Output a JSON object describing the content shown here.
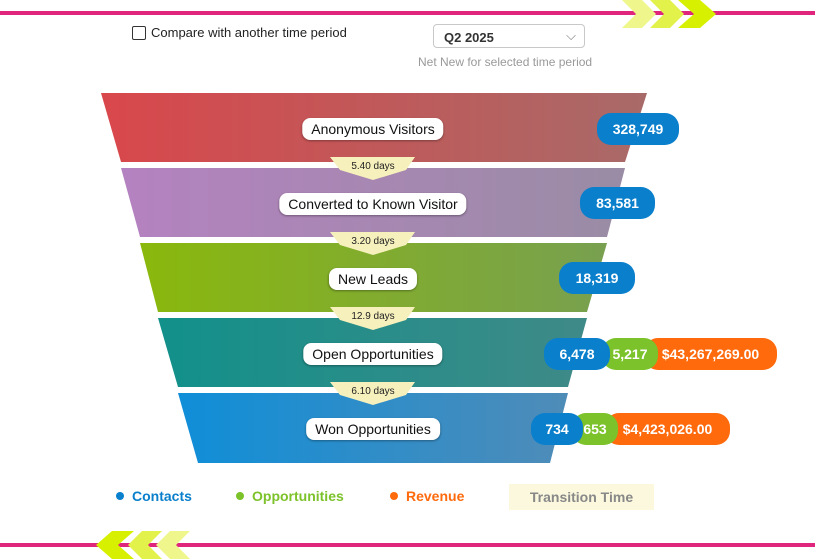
{
  "colors": {
    "accent_line": "#e0267c",
    "chevron": "#d6f000",
    "contacts": "#0a7fcc",
    "opportunities": "#7cc22a",
    "revenue": "#ff6a0d",
    "transition_bg": "#fbf8dd"
  },
  "controls": {
    "compare_label": "Compare with another time period",
    "compare_checked": false,
    "period_value": "Q2 2025",
    "period_caret": "⌵",
    "subcaption": "Net New for selected time period"
  },
  "stages": [
    {
      "label": "Anonymous Visitors",
      "contacts": "328,749"
    },
    {
      "label": "Converted to Known Visitor",
      "contacts": "83,581"
    },
    {
      "label": "New Leads",
      "contacts": "18,319"
    },
    {
      "label": "Open Opportunities",
      "contacts": "6,478",
      "opportunities": "5,217",
      "revenue": "$43,267,269.00"
    },
    {
      "label": "Won Opportunities",
      "contacts": "734",
      "opportunities": "653",
      "revenue": "$4,423,026.00"
    }
  ],
  "transitions": [
    "5.40 days",
    "3.20 days",
    "12.9 days",
    "6.10 days"
  ],
  "legend": {
    "contacts": "Contacts",
    "opportunities": "Opportunities",
    "revenue": "Revenue",
    "transition": "Transition Time"
  }
}
